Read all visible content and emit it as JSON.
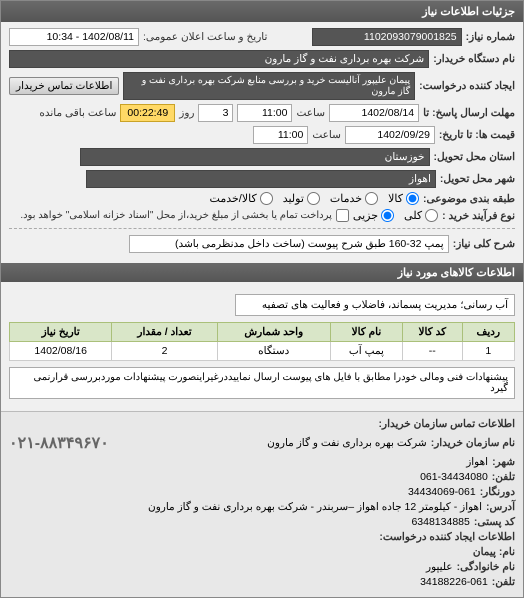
{
  "header": {
    "title": "جزئیات اطلاعات نیاز"
  },
  "fields": {
    "request_no_label": "شماره نیاز:",
    "request_no": "1102093079001825",
    "announce_label": "تاریخ و ساعت اعلان عمومی:",
    "announce_value": "1402/08/11 - 10:34",
    "buyer_org_label": "نام دستگاه خریدار:",
    "buyer_org": "شرکت بهره برداری نفت و گاز مارون",
    "creator_label": "ایجاد کننده درخواست:",
    "creator": "پیمان علیپور آنالیست خرید و بررسی منابع شرکت بهره برداری نفت و گاز مارون",
    "contact_btn": "اطلاعات تماس خریدار",
    "deadline_send_label": "مهلت ارسال پاسخ: تا",
    "deadline_send_date": "1402/08/14",
    "deadline_send_time": "11:00",
    "days_label": "روز",
    "days_value": "3",
    "countdown": "00:22:49",
    "remaining_label": "ساعت باقی مانده",
    "price_until_label": "قیمت ها: تا تاریخ:",
    "price_until_date": "1402/09/29",
    "price_until_time": "11:00",
    "province_label": "استان محل تحویل:",
    "province": "خوزستان",
    "city_label": "شهر محل تحویل:",
    "city": "اهواز",
    "group_label": "طبقه بندی موضوعی:",
    "purchase_type_label": "نوع فرآیند خرید :",
    "note_text": "پرداخت تمام یا بخشی از مبلغ خرید،از محل \"اسناد خزانه اسلامی\" خواهد بود.",
    "radios": {
      "kala": "کالا",
      "khadamat": "خدمات",
      "koli": "کلی",
      "jozi": "جزیی",
      "tolid": "تولید",
      "kala_khadamat": "کالا/خدمت"
    },
    "title_line_label": "شرح کلی نیاز:",
    "title_line": "پمپ 32-160 طبق شرح پیوست (ساخت داخل مدنظرمی باشد)",
    "items_header": "اطلاعات کالاهای مورد نیاز",
    "category": "آب رسانی؛ مدیریت پسماند، فاضلاب و فعالیت های تصفیه",
    "table": {
      "columns": [
        "ردیف",
        "کد کالا",
        "نام کالا",
        "واحد شمارش",
        "تعداد / مقدار",
        "تاریخ نیاز"
      ],
      "rows": [
        [
          "1",
          "--",
          "پمپ آب",
          "دستگاه",
          "2",
          "1402/08/16"
        ]
      ]
    },
    "note_box": "پیشنهادات فنی ومالی خودرا مطابق با فایل های پیوست ارسال نماییددرغیراینصورت پیشنهادات موردبررسی قرارنمی گیرد",
    "contact": {
      "header": "اطلاعات تماس سازمان خریدار:",
      "org_label": "نام سازمان خریدار:",
      "org": "شرکت بهره برداری نفت و گاز مارون",
      "city_label": "شهر:",
      "city": "اهواز",
      "tel_label": "تلفن:",
      "tel": "061-34434080",
      "fax_label": "دورنگار:",
      "fax": "34434069-061",
      "address_label": "آدرس:",
      "address": "اهواز - کیلومتر 12 جاده اهواز –سربندر - شرکت بهره برداری نفت و گاز مارون",
      "postal_label": "کد پستی:",
      "postal": "6348134885",
      "creator_header": "اطلاعات ایجاد کننده درخواست:",
      "name_label": "نام: پیمان",
      "family_label": "نام خانوادگی:",
      "family": "علیپور",
      "tel2_label": "تلفن:",
      "tel2": "34188226-061",
      "big_phone": "۰۲۱-۸۸۳۴۹۶۷۰"
    }
  },
  "colors": {
    "header_bg": "#5a5a5a",
    "th_bg": "#d9e6c8",
    "countdown_bg": "#ffd966"
  }
}
